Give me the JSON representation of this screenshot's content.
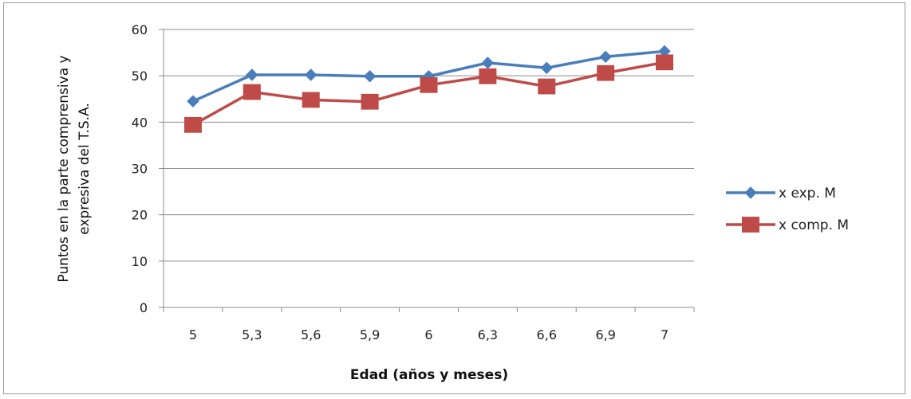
{
  "chart_data": {
    "type": "line",
    "categories": [
      "5",
      "5,3",
      "5,6",
      "5,9",
      "6",
      "6,3",
      "6,6",
      "6,9",
      "7"
    ],
    "series": [
      {
        "name": "x exp. M",
        "values": [
          44.5,
          50.2,
          50.2,
          49.9,
          49.9,
          52.8,
          51.7,
          54.1,
          55.3
        ],
        "color": "#4a7ebb",
        "marker": "diamond"
      },
      {
        "name": "x comp. M",
        "values": [
          39.4,
          46.5,
          44.8,
          44.4,
          48.0,
          49.9,
          47.7,
          50.6,
          52.9
        ],
        "color": "#be4b48",
        "marker": "square"
      }
    ],
    "xlabel": "Edad (años y meses)",
    "ylabel_lines": [
      "Puntos en la parte comprensiva y",
      "expresiva del T.S.A."
    ],
    "ylim": [
      0,
      60
    ],
    "yticks": [
      0,
      10,
      20,
      30,
      40,
      50,
      60
    ],
    "grid": true,
    "legend_position": "right"
  }
}
